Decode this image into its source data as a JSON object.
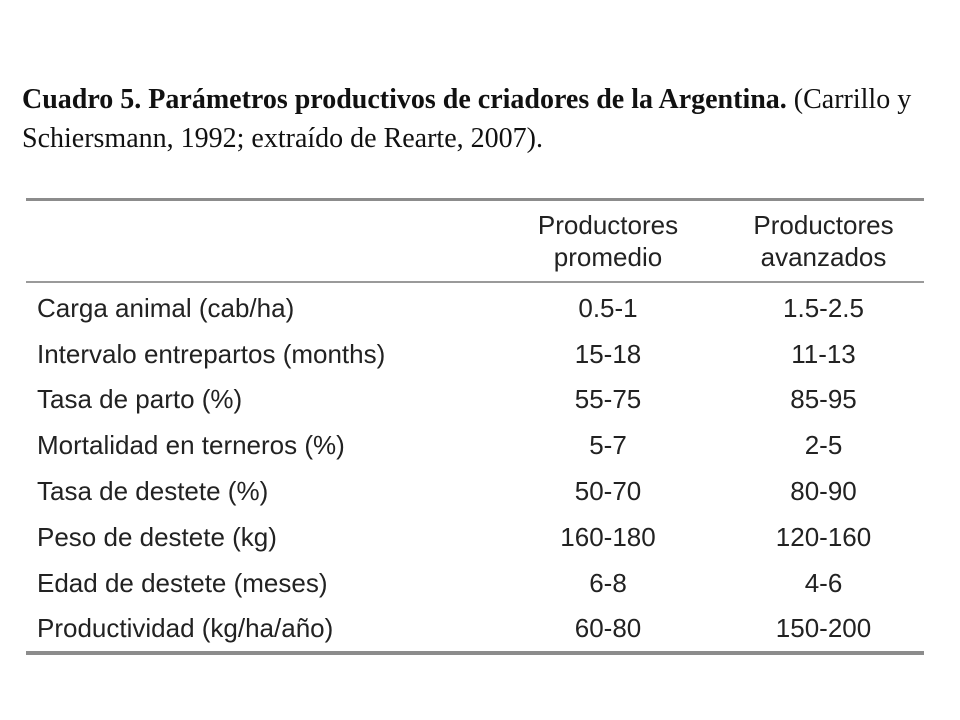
{
  "caption": {
    "bold_text": "Cuadro 5. Parámetros productivos de criadores de la Argentina.",
    "rest_line1": " (Carrillo y",
    "line2": "Schiersmann, 1992; extraído de Rearte, 2007)."
  },
  "table": {
    "headers": [
      {
        "line1": "",
        "line2": ""
      },
      {
        "line1": "Productores",
        "line2": "promedio"
      },
      {
        "line1": "Productores",
        "line2": "avanzados"
      }
    ],
    "rows": [
      {
        "label": "Carga animal (cab/ha)",
        "promedio": "0.5-1",
        "avanzados": "1.5-2.5"
      },
      {
        "label": "Intervalo entrepartos (months)",
        "promedio": "15-18",
        "avanzados": "11-13"
      },
      {
        "label": "Tasa de parto (%)",
        "promedio": "55-75",
        "avanzados": "85-95"
      },
      {
        "label": "Mortalidad en terneros (%)",
        "promedio": "5-7",
        "avanzados": "2-5"
      },
      {
        "label": "Tasa de destete (%)",
        "promedio": "50-70",
        "avanzados": "80-90"
      },
      {
        "label": "Peso de destete (kg)",
        "promedio": "160-180",
        "avanzados": "120-160"
      },
      {
        "label": "Edad de destete (meses)",
        "promedio": "6-8",
        "avanzados": "4-6"
      },
      {
        "label": "Productividad (kg/ha/año)",
        "promedio": "60-80",
        "avanzados": "150-200"
      }
    ]
  }
}
